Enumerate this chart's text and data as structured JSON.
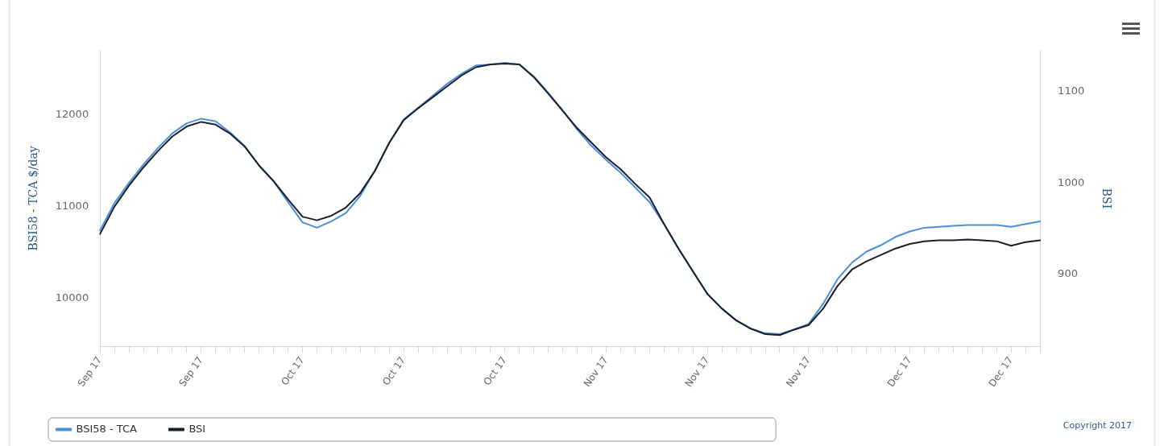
{
  "chart_data": {
    "type": "line",
    "categories": [
      "Sep 17",
      null,
      null,
      null,
      null,
      null,
      null,
      "Sep 17",
      null,
      null,
      null,
      null,
      null,
      null,
      "Oct 17",
      null,
      null,
      null,
      null,
      null,
      null,
      "Oct 17",
      null,
      null,
      null,
      null,
      null,
      null,
      "Oct 17",
      null,
      null,
      null,
      null,
      null,
      null,
      "Nov 17",
      null,
      null,
      null,
      null,
      null,
      null,
      "Nov 17",
      null,
      null,
      null,
      null,
      null,
      null,
      "Nov 17",
      null,
      null,
      null,
      null,
      null,
      null,
      "Dec 17",
      null,
      null,
      null,
      null,
      null,
      null,
      "Dec 17",
      null,
      null
    ],
    "series": [
      {
        "name": "BSI58 - TCA",
        "color": "#4a8fd9",
        "values": [
          10740,
          11040,
          11260,
          11460,
          11640,
          11800,
          11910,
          11960,
          11930,
          11810,
          11660,
          11450,
          11280,
          11050,
          10830,
          10770,
          10840,
          10930,
          11120,
          11390,
          11700,
          11950,
          12080,
          12210,
          12340,
          12450,
          12540,
          12550,
          12570,
          12550,
          12420,
          12240,
          12050,
          11840,
          11660,
          11510,
          11370,
          11210,
          11050,
          10810,
          10540,
          10290,
          10050,
          9890,
          9760,
          9670,
          9620,
          9610,
          9660,
          9720,
          9940,
          10210,
          10390,
          10510,
          10580,
          10670,
          10730,
          10770,
          10780,
          10790,
          10800,
          10800,
          10800,
          10780,
          10810,
          10840
        ]
      },
      {
        "name": "BSI",
        "color": "#1a1f2b",
        "axis": "y2",
        "values": [
          944,
          974,
          997,
          1017,
          1035,
          1051,
          1062,
          1067,
          1064,
          1054,
          1040,
          1019,
          1002,
          982,
          963,
          959,
          964,
          973,
          989,
          1013,
          1044,
          1069,
          1082,
          1094,
          1106,
          1118,
          1127,
          1130,
          1131,
          1130,
          1116,
          1098,
          1079,
          1060,
          1044,
          1028,
          1015,
          999,
          984,
          955,
          928,
          903,
          878,
          862,
          849,
          840,
          834,
          833,
          839,
          844,
          862,
          887,
          905,
          914,
          921,
          928,
          933,
          936,
          937,
          937,
          938,
          937,
          936,
          931,
          935,
          937
        ]
      }
    ],
    "ylabel": "BSI58 - TCA $/day",
    "y2label": "BSI",
    "ylim": [
      9470,
      12710
    ],
    "yticks": [
      10000,
      11000,
      12000
    ],
    "y2lim": [
      820,
      1146
    ],
    "y2ticks": [
      900,
      1000,
      1100
    ],
    "grid": false,
    "legend": "bottom",
    "marker": "none",
    "line_style": "solid",
    "annotations": [
      "Copyright 2017"
    ]
  }
}
